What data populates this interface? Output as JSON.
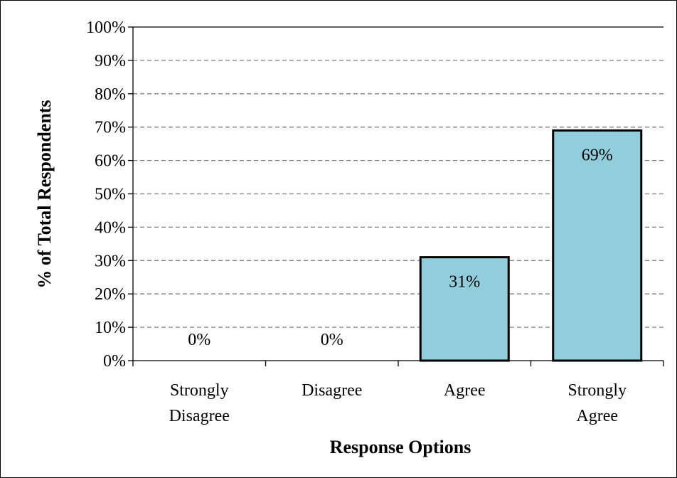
{
  "chart_data": {
    "type": "bar",
    "categories": [
      [
        "Strongly",
        "Disagree"
      ],
      [
        "Disagree"
      ],
      [
        "Agree"
      ],
      [
        "Strongly",
        "Agree"
      ]
    ],
    "values": [
      0,
      0,
      31,
      69
    ],
    "data_labels": [
      "0%",
      "0%",
      "31%",
      "69%"
    ],
    "title": "",
    "xlabel": "Response Options",
    "ylabel": "% of Total Respondents",
    "ylim": [
      0,
      100
    ],
    "y_ticks": [
      0,
      10,
      20,
      30,
      40,
      50,
      60,
      70,
      80,
      90,
      100
    ],
    "y_tick_labels": [
      "0%",
      "10%",
      "20%",
      "30%",
      "40%",
      "50%",
      "60%",
      "70%",
      "80%",
      "90%",
      "100%"
    ],
    "grid": "horizontal dashed",
    "legend": "none",
    "colors": {
      "bar_fill": "#92cddc",
      "bar_stroke": "#000000",
      "grid": "#808080"
    }
  }
}
